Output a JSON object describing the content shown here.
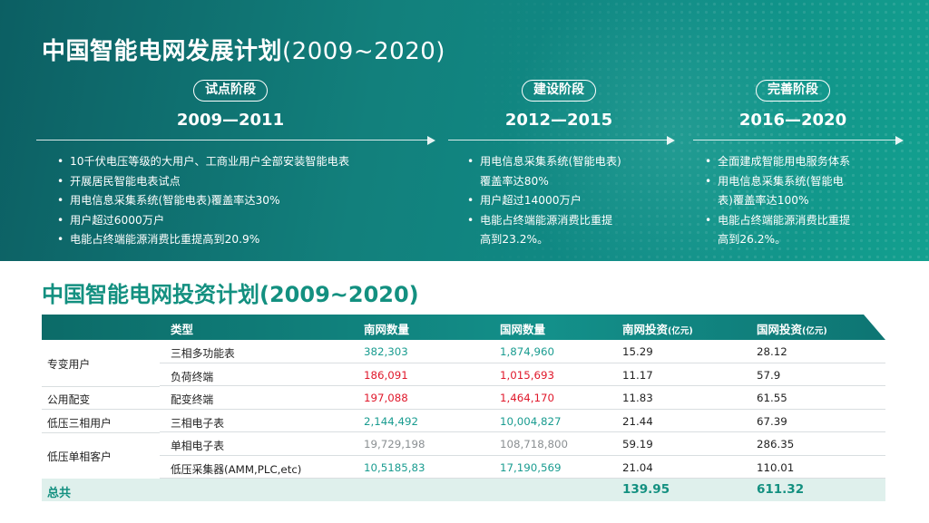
{
  "section1": {
    "title_main": "中国智能电网发展计划",
    "title_paren": "(2009~2020)"
  },
  "stages": [
    {
      "name": "试点阶段",
      "years": "2009—2011",
      "items": [
        "10千伏电压等级的大用户、工商业用户全部安装智能电表",
        "开展居民智能电表试点",
        "用电信息采集系统(智能电表)覆盖率达30%",
        "用户超过6000万户",
        "电能占终端能源消费比重提高到20.9%"
      ]
    },
    {
      "name": "建设阶段",
      "years": "2012—2015",
      "items": [
        "用电信息采集系统(智能电表)",
        "覆盖率达80%",
        "用户超过14000万户",
        "电能占终端能源消费比重提",
        "高到23.2%。"
      ]
    },
    {
      "name": "完善阶段",
      "years": "2016—2020",
      "items": [
        "全面建成智能用电服务体系",
        "用电信息采集系统(智能电",
        "表)覆盖率达100%",
        "电能占终端能源消费比重提",
        "高到26.2%。"
      ]
    }
  ],
  "section2": {
    "title": "中国智能电网投资计划(2009~2020)"
  },
  "table": {
    "headers": {
      "type": "类型",
      "south_count": "南网数量",
      "state_count": "国网数量",
      "south_invest": "南网投资",
      "state_invest": "国网投资",
      "unit": "(亿元)"
    },
    "groups": {
      "g1": "专变用户",
      "g2": "公用配变",
      "g3": "低压三相用户",
      "g4": "低压单相客户"
    },
    "rows": [
      {
        "type": "三相多功能表",
        "south_count": "382,303",
        "state_count": "1,874,960",
        "south_invest": "15.29",
        "state_invest": "28.12",
        "count_color": "#1a9c90"
      },
      {
        "type": "负荷终端",
        "south_count": "186,091",
        "state_count": "1,015,693",
        "south_invest": "11.17",
        "state_invest": "57.9",
        "count_color": "#e0182b"
      },
      {
        "type": "配变终端",
        "south_count": "197,088",
        "state_count": "1,464,170",
        "south_invest": "11.83",
        "state_invest": "61.55",
        "count_color": "#e0182b"
      },
      {
        "type": "三相电子表",
        "south_count": "2,144,492",
        "state_count": "10,004,827",
        "south_invest": "21.44",
        "state_invest": "67.39",
        "count_color": "#1a9c90"
      },
      {
        "type": "单相电子表",
        "south_count": "19,729,198",
        "state_count": "108,718,800",
        "south_invest": "59.19",
        "state_invest": "286.35",
        "count_color": "#8a8f92"
      },
      {
        "type": "低压采集器(AMM,PLC,etc)",
        "south_count": "10,5185,83",
        "state_count": "17,190,569",
        "south_invest": "21.04",
        "state_invest": "110.01",
        "count_color": "#1a9c90"
      }
    ],
    "total": {
      "label": "总共",
      "south_invest": "139.95",
      "state_invest": "611.32"
    }
  }
}
